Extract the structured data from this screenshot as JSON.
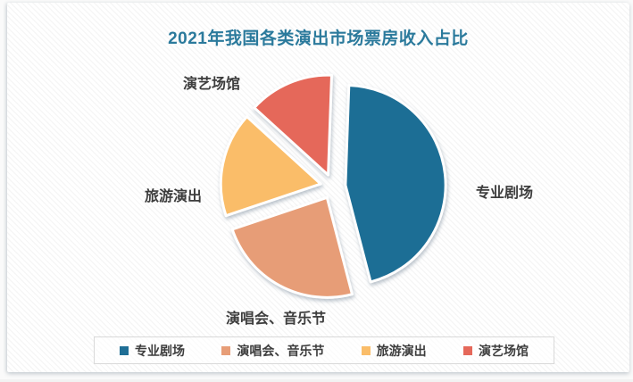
{
  "title": "2021年我国各类演出市场票房收入占比",
  "colors": {
    "title": "#2b7a9c",
    "label_text": "#3d3d3d",
    "legend_border": "#d9d9d9"
  },
  "chart_data": {
    "type": "pie",
    "title": "2021年我国各类演出市场票房收入占比",
    "labels": [
      "专业剧场",
      "演唱会、音乐节",
      "旅游演出",
      "演艺场馆"
    ],
    "values": [
      45.4,
      23.9,
      16.9,
      13.8
    ],
    "unit": "percent",
    "colors": [
      "#1f6e95",
      "#e79d77",
      "#fabd69",
      "#e5685a"
    ],
    "start_angle_deg": 2,
    "exploded": true,
    "data_labels_shown": false,
    "legend_position": "bottom"
  }
}
